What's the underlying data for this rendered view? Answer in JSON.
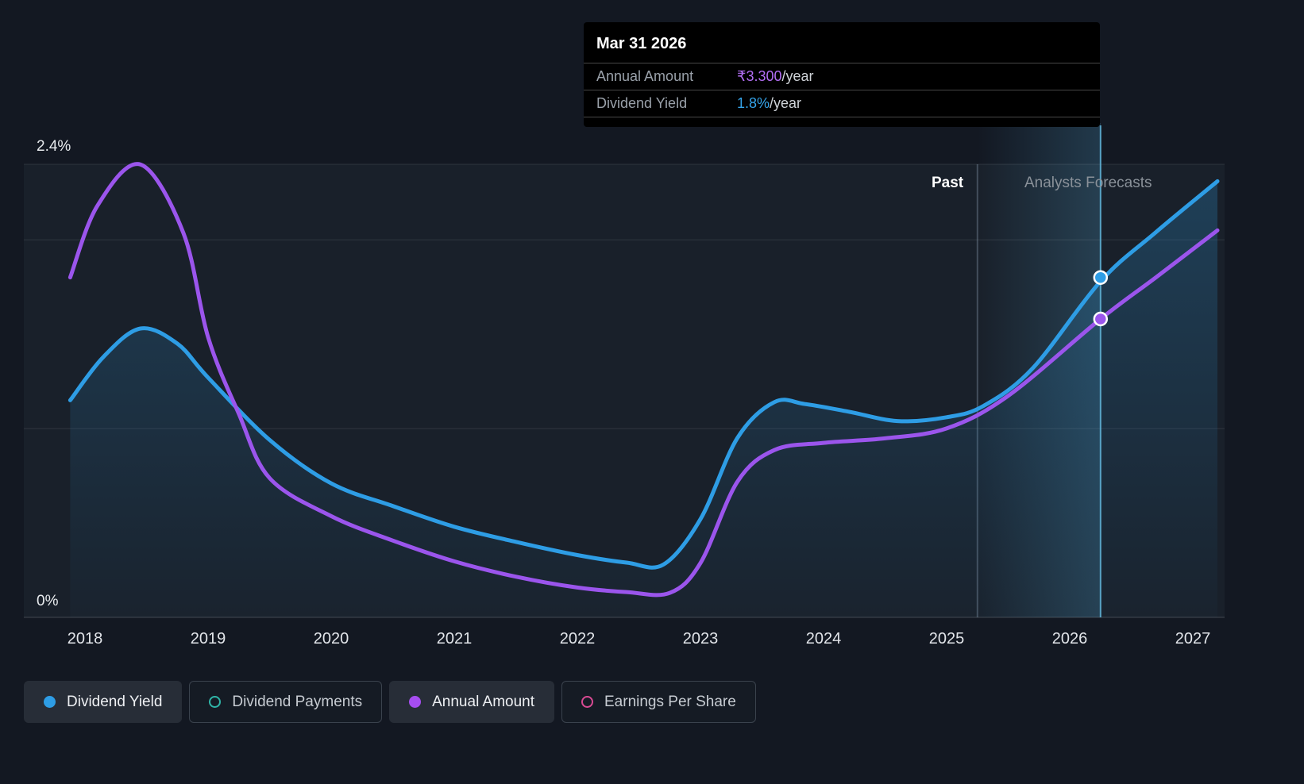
{
  "tooltip": {
    "date": "Mar 31 2026",
    "rows": [
      {
        "label": "Annual Amount",
        "value": "₹3.300",
        "suffix": "/year",
        "color": "#b26ef3"
      },
      {
        "label": "Dividend Yield",
        "value": "1.8%",
        "suffix": "/year",
        "color": "#35a4ea"
      }
    ]
  },
  "axis": {
    "y_top_label": "2.4%",
    "y_bottom_label": "0%",
    "x_labels": [
      "2018",
      "2019",
      "2020",
      "2021",
      "2022",
      "2023",
      "2024",
      "2025",
      "2026",
      "2027"
    ]
  },
  "annotations": {
    "past": "Past",
    "forecast": "Analysts Forecasts"
  },
  "legend": [
    {
      "label": "Dividend Yield",
      "color": "#2e9de5",
      "style": "filled",
      "active": true
    },
    {
      "label": "Dividend Payments",
      "color": "#2fb5a8",
      "style": "open",
      "active": false
    },
    {
      "label": "Annual Amount",
      "color": "#a64df0",
      "style": "filled",
      "active": true
    },
    {
      "label": "Earnings Per Share",
      "color": "#d84a93",
      "style": "open",
      "active": false
    }
  ],
  "chart_data": {
    "type": "line",
    "title": "Dividend yield and annual amount — past and analysts forecasts",
    "x_range": [
      2017.85,
      2027.25
    ],
    "percent_axis": {
      "min": 0,
      "max": 2.4,
      "gridlines": [
        2.4,
        2.0,
        1.0
      ],
      "baseline": 0
    },
    "past_divider_x": 2025.25,
    "hover_x": 2026.25,
    "series": [
      {
        "name": "Dividend Yield",
        "unit": "%",
        "axis": "percent",
        "color": "#2e9de5",
        "fill": true,
        "points": [
          [
            2017.88,
            1.15
          ],
          [
            2018.15,
            1.38
          ],
          [
            2018.45,
            1.53
          ],
          [
            2018.75,
            1.45
          ],
          [
            2019.0,
            1.27
          ],
          [
            2019.5,
            0.94
          ],
          [
            2020.0,
            0.71
          ],
          [
            2020.5,
            0.59
          ],
          [
            2021.0,
            0.48
          ],
          [
            2021.5,
            0.4
          ],
          [
            2022.0,
            0.33
          ],
          [
            2022.4,
            0.29
          ],
          [
            2022.7,
            0.28
          ],
          [
            2023.0,
            0.52
          ],
          [
            2023.3,
            0.95
          ],
          [
            2023.6,
            1.14
          ],
          [
            2023.85,
            1.13
          ],
          [
            2024.2,
            1.09
          ],
          [
            2024.6,
            1.04
          ],
          [
            2025.0,
            1.06
          ],
          [
            2025.3,
            1.12
          ],
          [
            2025.7,
            1.32
          ],
          [
            2026.25,
            1.78
          ],
          [
            2026.7,
            2.04
          ],
          [
            2027.2,
            2.31
          ]
        ]
      },
      {
        "name": "Annual Amount",
        "unit": "₹/year",
        "axis": "amount",
        "color": "#9b55ec",
        "fill": false,
        "points": [
          [
            2017.88,
            3.76
          ],
          [
            2018.1,
            4.55
          ],
          [
            2018.45,
            5.01
          ],
          [
            2018.8,
            4.25
          ],
          [
            2019.0,
            3.1
          ],
          [
            2019.25,
            2.25
          ],
          [
            2019.5,
            1.54
          ],
          [
            2020.0,
            1.12
          ],
          [
            2020.5,
            0.85
          ],
          [
            2021.0,
            0.62
          ],
          [
            2021.5,
            0.45
          ],
          [
            2022.0,
            0.33
          ],
          [
            2022.4,
            0.28
          ],
          [
            2022.75,
            0.27
          ],
          [
            2023.0,
            0.6
          ],
          [
            2023.3,
            1.5
          ],
          [
            2023.6,
            1.85
          ],
          [
            2024.0,
            1.93
          ],
          [
            2024.5,
            1.98
          ],
          [
            2025.0,
            2.09
          ],
          [
            2025.5,
            2.45
          ],
          [
            2026.25,
            3.3
          ],
          [
            2026.7,
            3.76
          ],
          [
            2027.2,
            4.28
          ]
        ]
      }
    ],
    "markers": [
      {
        "series": "Dividend Yield",
        "x": 2026.25,
        "value": 1.8
      },
      {
        "series": "Annual Amount",
        "x": 2026.25,
        "value": 3.3
      }
    ]
  }
}
